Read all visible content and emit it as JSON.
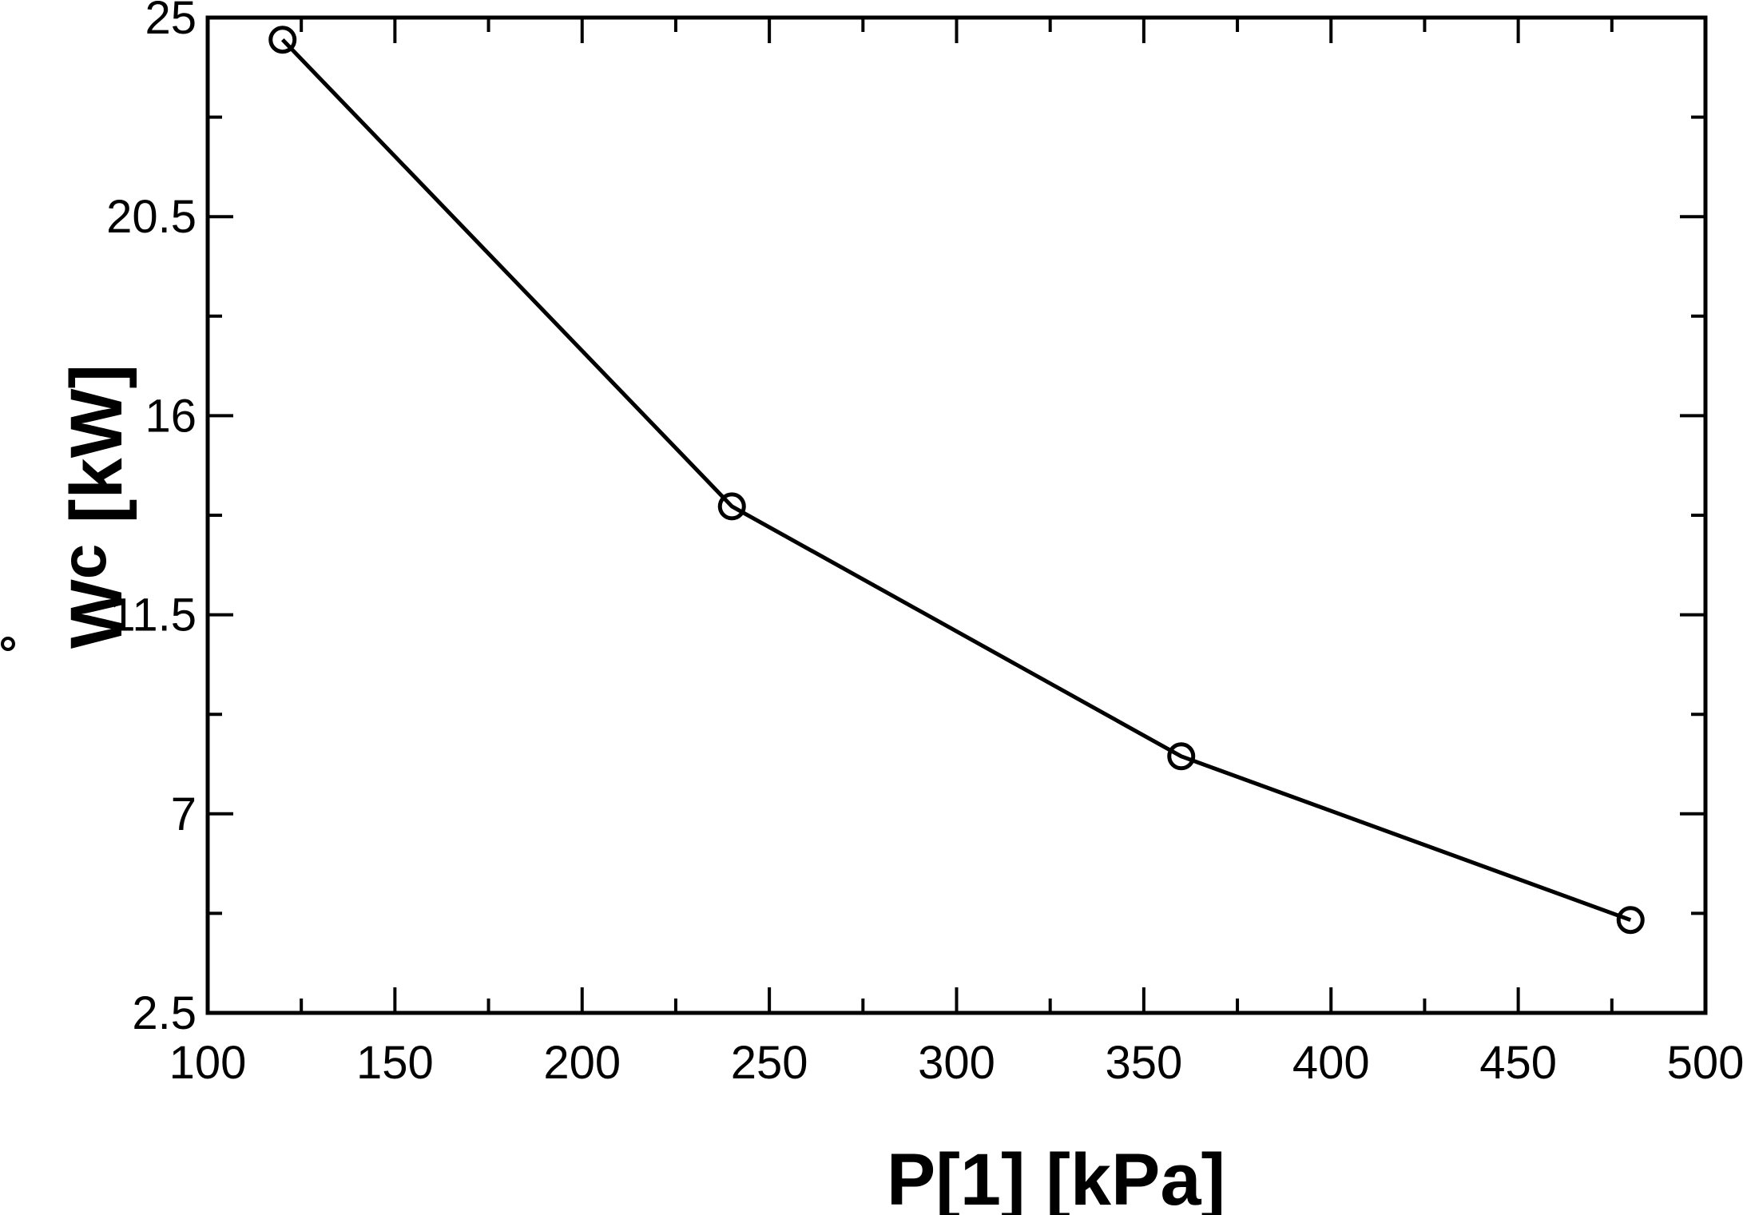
{
  "chart_data": {
    "type": "line",
    "title": "",
    "xlabel": "P[1]  [kPa]",
    "ylabel": {
      "symbol": "W",
      "subscript": "c",
      "units": " [kW]"
    },
    "xlim": [
      100,
      500
    ],
    "ylim": [
      2.5,
      25
    ],
    "x_ticks": [
      100,
      150,
      200,
      250,
      300,
      350,
      400,
      450,
      500
    ],
    "x_tick_labels": [
      "100",
      "150",
      "200",
      "250",
      "300",
      "350",
      "400",
      "450",
      "500"
    ],
    "x_minor_step": 25,
    "y_ticks": [
      2.5,
      7,
      11.5,
      16,
      20.5,
      25
    ],
    "y_tick_labels": [
      "2.5",
      "7",
      "11.5",
      "16",
      "20.5",
      "25"
    ],
    "y_minor_step": 2.25,
    "grid": false,
    "legend": "none",
    "series": [
      {
        "x": [
          120,
          240,
          360,
          480
        ],
        "y": [
          24.5,
          13.95,
          8.3,
          4.6
        ],
        "marker": "open-circle",
        "color": "#000000"
      }
    ]
  }
}
